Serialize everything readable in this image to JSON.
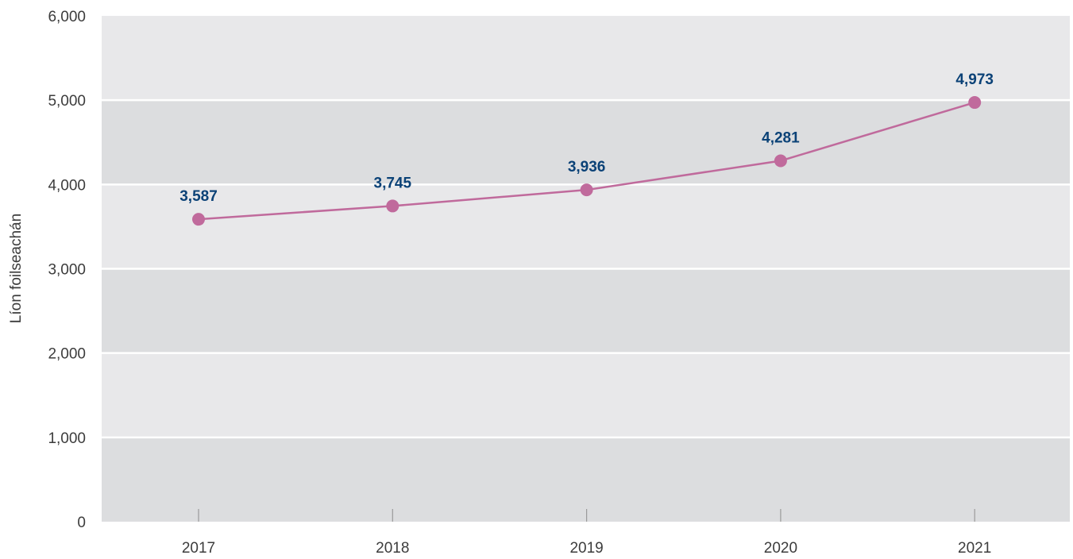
{
  "chart_data": {
    "type": "line",
    "title": "",
    "xlabel": "",
    "ylabel": "Líon foilseachán",
    "categories": [
      "2017",
      "2018",
      "2019",
      "2020",
      "2021"
    ],
    "series": [
      {
        "values": [
          3587,
          3745,
          3936,
          4281,
          4973
        ],
        "data_labels": [
          "3,587",
          "3,745",
          "3,936",
          "4,281",
          "4,973"
        ]
      }
    ],
    "ylim": [
      0,
      6000
    ],
    "yticks": [
      0,
      1000,
      2000,
      3000,
      4000,
      5000,
      6000
    ],
    "ytick_labels": [
      "0",
      "1,000",
      "2,000",
      "3,000",
      "4,000",
      "5,000",
      "6,000"
    ],
    "grid": true,
    "legend": "none",
    "colors": {
      "line": "#c06a9c",
      "marker": "#c06a9c",
      "data_label": "#0b4277",
      "band_light": "#e8e8ea",
      "band_dark": "#dcdddf",
      "gridline": "#ffffff",
      "tick_text": "#3c3c3c"
    }
  }
}
